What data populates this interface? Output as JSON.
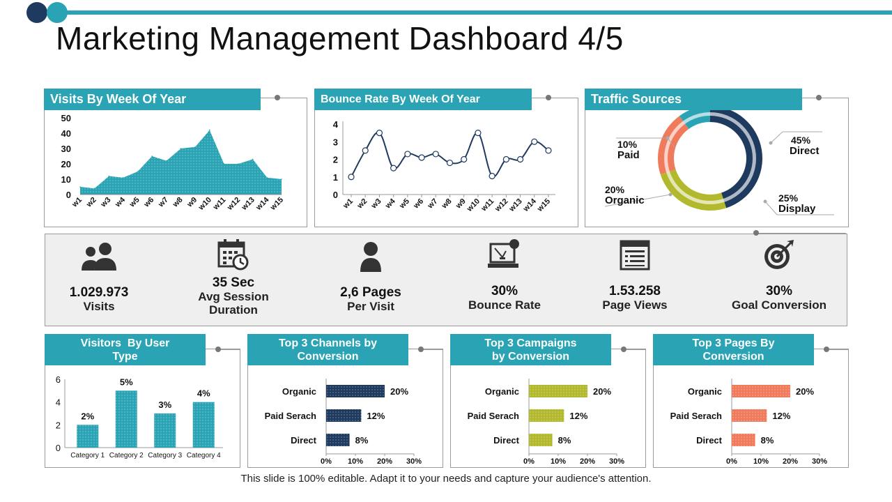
{
  "title": "Marketing Management Dashboard 4/5",
  "footer": "This slide is 100% editable. Adapt it to your needs and capture your audience's attention.",
  "colors": {
    "teal": "#2aa3b4",
    "navy": "#1f3a5f",
    "salmon": "#f07b5c",
    "olive": "#b3b92c",
    "text": "#111111"
  },
  "chart_data": [
    {
      "id": "visits",
      "type": "area",
      "title": "Visits By Week Of Year",
      "categories": [
        "w1",
        "w2",
        "w3",
        "w4",
        "w5",
        "w6",
        "w7",
        "w8",
        "w9",
        "w10",
        "w11",
        "w12",
        "w13",
        "w14",
        "w15"
      ],
      "values": [
        5,
        4,
        12,
        11,
        15,
        25,
        22,
        30,
        31,
        42,
        20,
        20,
        23,
        11,
        10
      ],
      "ylim": [
        0,
        50
      ],
      "yticks": [
        "0",
        "10",
        "20",
        "30",
        "40",
        "50"
      ]
    },
    {
      "id": "bounce",
      "type": "line",
      "title": "Bounce Rate By Week Of Year",
      "categories": [
        "w1",
        "w2",
        "w3",
        "w4",
        "w5",
        "w6",
        "w7",
        "w8",
        "w9",
        "w10",
        "w11",
        "w12",
        "w13",
        "w14",
        "w15"
      ],
      "values": [
        1,
        2.5,
        3.5,
        1.5,
        2.3,
        2.1,
        2.3,
        1.8,
        2,
        3.5,
        1.05,
        2,
        2,
        3,
        2.5
      ],
      "ylim": [
        0,
        4
      ],
      "yticks": [
        "0",
        "1",
        "2",
        "3",
        "4"
      ]
    },
    {
      "id": "traffic",
      "type": "pie",
      "title": "Traffic Sources",
      "slices": [
        {
          "name": "Direct",
          "label": "45%",
          "value": 45,
          "color": "#1f3a5f"
        },
        {
          "name": "Display",
          "label": "25%",
          "value": 25,
          "color": "#b3b92c"
        },
        {
          "name": "Organic",
          "label": "20%",
          "value": 20,
          "color": "#f07b5c"
        },
        {
          "name": "Paid",
          "label": "10%",
          "value": 10,
          "color": "#2aa3b4"
        }
      ]
    },
    {
      "id": "usertype",
      "type": "bar",
      "title": "Visitors  By User Type",
      "categories": [
        "Category 1",
        "Category 2",
        "Category 3",
        "Category 4"
      ],
      "values": [
        2,
        5,
        3,
        4
      ],
      "labels": [
        "2%",
        "5%",
        "3%",
        "4%"
      ],
      "ylim": [
        0,
        6
      ],
      "yticks": [
        "0",
        "2",
        "4",
        "6"
      ],
      "color": "#2aa3b4"
    },
    {
      "id": "channels",
      "type": "bar",
      "title": "Top 3 Channels by Conversion",
      "orientation": "horizontal",
      "categories": [
        "Organic",
        "Paid Serach",
        "Direct"
      ],
      "values": [
        20,
        12,
        8
      ],
      "labels": [
        "20%",
        "12%",
        "8%"
      ],
      "xlim": [
        0,
        30
      ],
      "xticks": [
        "0%",
        "10%",
        "20%",
        "30%"
      ],
      "color": "#1f3a5f"
    },
    {
      "id": "campaigns",
      "type": "bar",
      "title": "Top 3 Campaigns by Conversion",
      "orientation": "horizontal",
      "categories": [
        "Organic",
        "Paid Serach",
        "Direct"
      ],
      "values": [
        20,
        12,
        8
      ],
      "labels": [
        "20%",
        "12%",
        "8%"
      ],
      "xlim": [
        0,
        30
      ],
      "xticks": [
        "0%",
        "10%",
        "20%",
        "30%"
      ],
      "color": "#b3b92c"
    },
    {
      "id": "pages",
      "type": "bar",
      "title": "Top 3 Pages By Conversion",
      "orientation": "horizontal",
      "categories": [
        "Organic",
        "Paid Serach",
        "Direct"
      ],
      "values": [
        20,
        12,
        8
      ],
      "labels": [
        "20%",
        "12%",
        "8%"
      ],
      "xlim": [
        0,
        30
      ],
      "xticks": [
        "0%",
        "10%",
        "20%",
        "30%"
      ],
      "color": "#f07b5c"
    }
  ],
  "panels": {
    "visits": {
      "header": "Visits By Week Of Year"
    },
    "bounce": {
      "header": "Bounce Rate By Week Of Year"
    },
    "traffic": {
      "header": "Traffic Sources"
    },
    "usertype": {
      "header_line1": "Visitors  By User",
      "header_line2": "Type"
    },
    "channels": {
      "header_line1": "Top 3 Channels by",
      "header_line2": "Conversion"
    },
    "campaigns": {
      "header_line1": "Top 3 Campaigns",
      "header_line2": "by Conversion"
    },
    "pages": {
      "header_line1": "Top 3 Pages By",
      "header_line2": "Conversion"
    }
  },
  "traffic_labels": {
    "paid": {
      "pct": "10%",
      "name": "Paid"
    },
    "organic": {
      "pct": "20%",
      "name": "Organic"
    },
    "direct": {
      "pct": "45%",
      "name": "Direct"
    },
    "display": {
      "pct": "25%",
      "name": "Display"
    }
  },
  "kpis": [
    {
      "icon": "users-icon",
      "value": "1.029.973",
      "label_line1": "Visits",
      "label_line2": ""
    },
    {
      "icon": "calendar-clock-icon",
      "value": "35 Sec",
      "label_line1": "Avg Session",
      "label_line2": "Duration"
    },
    {
      "icon": "person-icon",
      "value": "2,6 Pages",
      "label_line1": "Per Visit",
      "label_line2": ""
    },
    {
      "icon": "computer-bounce-icon",
      "value": "30%",
      "label_line1": "Bounce Rate",
      "label_line2": ""
    },
    {
      "icon": "document-icon",
      "value": "1.53.258",
      "label_line1": "Page Views",
      "label_line2": ""
    },
    {
      "icon": "target-icon",
      "value": "30%",
      "label_line1": "Goal Conversion",
      "label_line2": ""
    }
  ]
}
